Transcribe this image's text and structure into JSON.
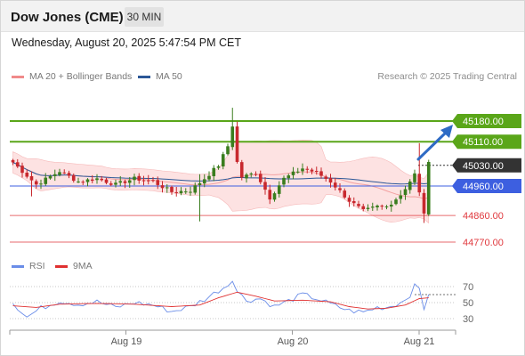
{
  "header": {
    "title": "Dow Jones (CME)",
    "timeframe": "30 MIN"
  },
  "datetime": "Wednesday, August 20, 2025 5:47:54 PM CET",
  "legend": {
    "ma20": {
      "label": "MA 20 + Bollinger Bands",
      "color": "#f08a8a"
    },
    "ma50": {
      "label": "MA 50",
      "color": "#2b5797"
    }
  },
  "credit": "Research © 2025 Trading Central",
  "price_levels": [
    {
      "label": "45180.00",
      "value": 45180,
      "kind": "resistance"
    },
    {
      "label": "45110.00",
      "value": 45110,
      "kind": "resistance"
    },
    {
      "label": "45030.00",
      "value": 45030,
      "kind": "last"
    },
    {
      "label": "44960.00",
      "value": 44960,
      "kind": "pivot"
    },
    {
      "label": "44860.00",
      "value": 44860,
      "kind": "support"
    },
    {
      "label": "44770.00",
      "value": 44770,
      "kind": "support"
    }
  ],
  "colors": {
    "resistance": "#5aa619",
    "pivot": "#3d5fe0",
    "support": "#e0393e",
    "last": "#333333",
    "up": "#3a7d1e",
    "down": "#c8282e",
    "bands": "#fde2e2",
    "rsi": "#6a8de8",
    "nine_ma": "#e03030"
  },
  "rsi_legend": {
    "rsi": "RSI",
    "nine_ma": "9MA"
  },
  "rsi_axis": [
    "70",
    "50",
    "30"
  ],
  "x_axis": [
    "Aug 19",
    "Aug 20",
    "Aug 21"
  ],
  "chart_data": {
    "type": "candlestick",
    "title": "Dow Jones (CME)",
    "interval": "30 MIN",
    "anchors_close": [
      [
        0,
        45040
      ],
      [
        5,
        44965
      ],
      [
        10,
        45010
      ],
      [
        14,
        44975
      ],
      [
        18,
        44985
      ],
      [
        22,
        44965
      ],
      [
        26,
        44985
      ],
      [
        30,
        44975
      ],
      [
        34,
        44940
      ],
      [
        38,
        44945
      ],
      [
        41,
        44985
      ],
      [
        44,
        45030
      ],
      [
        46,
        45095
      ],
      [
        47,
        45165
      ],
      [
        48,
        45040
      ],
      [
        49,
        44990
      ],
      [
        52,
        45005
      ],
      [
        55,
        44920
      ],
      [
        58,
        44985
      ],
      [
        62,
        45020
      ],
      [
        65,
        45005
      ],
      [
        68,
        44975
      ],
      [
        72,
        44910
      ],
      [
        75,
        44875
      ],
      [
        78,
        44890
      ],
      [
        80,
        44890
      ],
      [
        83,
        44930
      ],
      [
        86,
        45000
      ],
      [
        88,
        44870
      ],
      [
        89,
        45035
      ]
    ],
    "anchors_high": [
      [
        47,
        45225
      ],
      [
        87,
        45105
      ],
      [
        40,
        45000
      ]
    ],
    "anchors_low": [
      [
        40,
        44840
      ],
      [
        88,
        44835
      ],
      [
        4,
        44925
      ]
    ],
    "rsi_anchors": [
      [
        0,
        50
      ],
      [
        3,
        32
      ],
      [
        6,
        43
      ],
      [
        10,
        52
      ],
      [
        14,
        48
      ],
      [
        18,
        51
      ],
      [
        22,
        44
      ],
      [
        26,
        50
      ],
      [
        30,
        47
      ],
      [
        34,
        39
      ],
      [
        38,
        45
      ],
      [
        41,
        54
      ],
      [
        44,
        65
      ],
      [
        46,
        72
      ],
      [
        47,
        80
      ],
      [
        48,
        64
      ],
      [
        50,
        53
      ],
      [
        53,
        55
      ],
      [
        56,
        45
      ],
      [
        59,
        52
      ],
      [
        62,
        60
      ],
      [
        65,
        55
      ],
      [
        68,
        48
      ],
      [
        72,
        40
      ],
      [
        75,
        38
      ],
      [
        78,
        44
      ],
      [
        80,
        44
      ],
      [
        83,
        50
      ],
      [
        85,
        60
      ],
      [
        86,
        70
      ],
      [
        87,
        67
      ],
      [
        88,
        43
      ],
      [
        89,
        62
      ]
    ],
    "ma9_anchors": [
      [
        0,
        46
      ],
      [
        5,
        44
      ],
      [
        10,
        48
      ],
      [
        18,
        49
      ],
      [
        26,
        48
      ],
      [
        34,
        45
      ],
      [
        40,
        47
      ],
      [
        44,
        56
      ],
      [
        48,
        63
      ],
      [
        52,
        58
      ],
      [
        56,
        52
      ],
      [
        62,
        53
      ],
      [
        68,
        51
      ],
      [
        72,
        45
      ],
      [
        76,
        42
      ],
      [
        80,
        43
      ],
      [
        84,
        47
      ],
      [
        87,
        55
      ],
      [
        89,
        56
      ]
    ],
    "rsi_levels": [
      70,
      50,
      30
    ]
  }
}
